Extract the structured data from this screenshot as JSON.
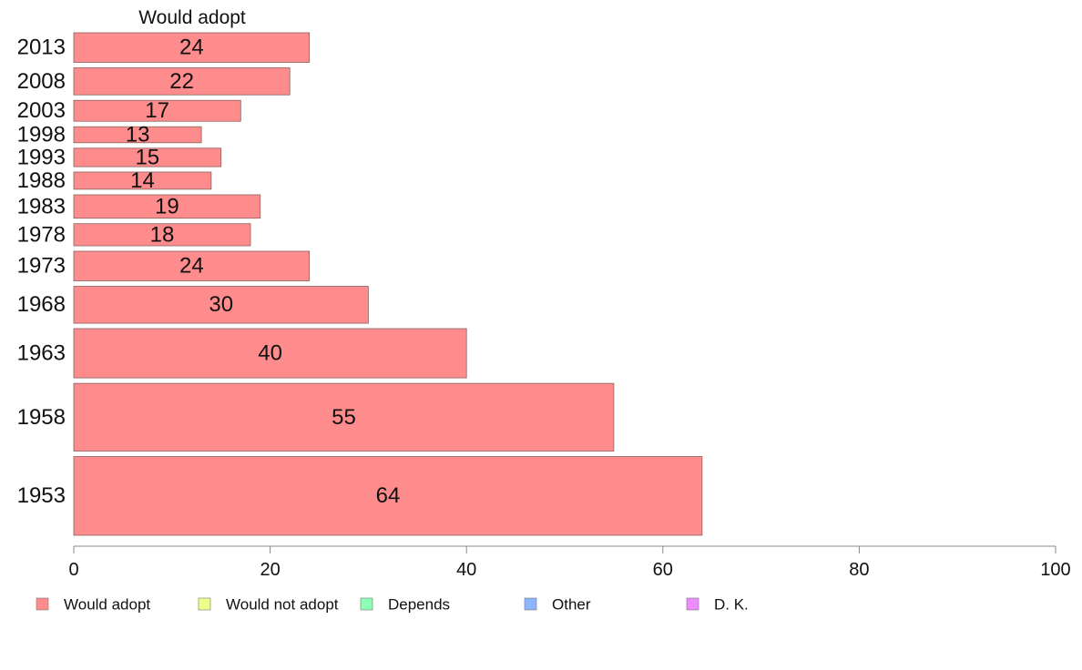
{
  "chart_data": {
    "type": "bar",
    "orientation": "horizontal",
    "title": "Would adopt",
    "categories": [
      "2013",
      "2008",
      "2003",
      "1998",
      "1993",
      "1988",
      "1983",
      "1978",
      "1973",
      "1968",
      "1963",
      "1958",
      "1953"
    ],
    "series": [
      {
        "name": "Would adopt",
        "color": "#ff8c8c",
        "values": [
          24,
          22,
          17,
          13,
          15,
          14,
          19,
          18,
          24,
          30,
          40,
          55,
          64
        ]
      }
    ],
    "value_labels": [
      "24",
      "22",
      "17",
      "13",
      "15",
      "14",
      "19",
      "18",
      "24",
      "30",
      "40",
      "55",
      "64"
    ],
    "xlim": [
      0,
      100
    ],
    "xticks": [
      "0",
      "20",
      "40",
      "60",
      "80",
      "100"
    ],
    "grid": false,
    "legend": {
      "placement": "bottom",
      "items": [
        {
          "label": "Would adopt",
          "color": "#ff8c8c"
        },
        {
          "label": "Would not adopt",
          "color": "#eeff8c"
        },
        {
          "label": "Depends",
          "color": "#8cffb4"
        },
        {
          "label": "Other",
          "color": "#8cb4ff"
        },
        {
          "label": "D. K.",
          "color": "#ee8cff"
        }
      ]
    }
  }
}
